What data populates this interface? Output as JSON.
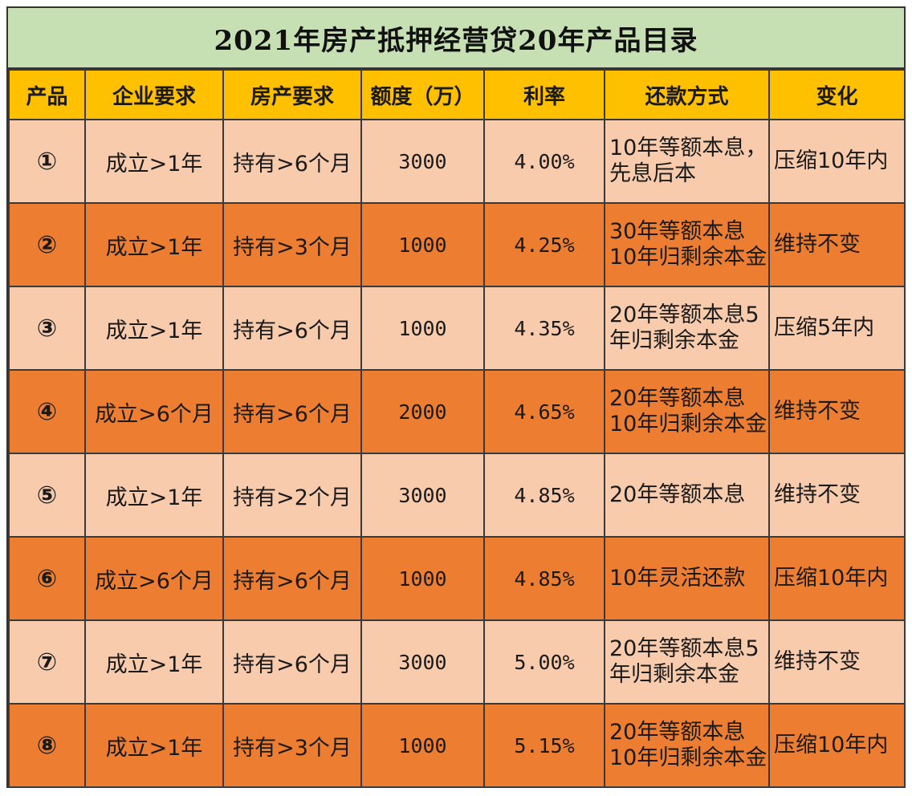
{
  "title": "2021年房产抵押经营贷20年产品目录",
  "headers": [
    "产品",
    "企业要求",
    "房产要求",
    "额度（万）",
    "利率",
    "还款方式",
    "变化"
  ],
  "rows": [
    {
      "id": "①",
      "company": "成立>1年",
      "property": "持有>6个月",
      "amount": "3000",
      "rate": "4.00%",
      "repayment": "10年等额本息，先息后本",
      "change": "压缩10年内"
    },
    {
      "id": "②",
      "company": "成立>1年",
      "property": "持有>3个月",
      "amount": "1000",
      "rate": "4.25%",
      "repayment": "30年等额本息10年归剩余本金",
      "change": "维持不变"
    },
    {
      "id": "③",
      "company": "成立>1年",
      "property": "持有>6个月",
      "amount": "1000",
      "rate": "4.35%",
      "repayment": "20年等额本息5年归剩余本金",
      "change": "压缩5年内"
    },
    {
      "id": "④",
      "company": "成立>6个月",
      "property": "持有>6个月",
      "amount": "2000",
      "rate": "4.65%",
      "repayment": "20年等额本息10年归剩余本金",
      "change": "维持不变"
    },
    {
      "id": "⑤",
      "company": "成立>1年",
      "property": "持有>2个月",
      "amount": "3000",
      "rate": "4.85%",
      "repayment": "20年等额本息",
      "change": "维持不变"
    },
    {
      "id": "⑥",
      "company": "成立>6个月",
      "property": "持有>6个月",
      "amount": "1000",
      "rate": "4.85%",
      "repayment": "10年灵活还款",
      "change": "压缩10年内"
    },
    {
      "id": "⑦",
      "company": "成立>1年",
      "property": "持有>6个月",
      "amount": "3000",
      "rate": "5.00%",
      "repayment": "20年等额本息5年归剩余本金",
      "change": "维持不变"
    },
    {
      "id": "⑧",
      "company": "成立>1年",
      "property": "持有>3个月",
      "amount": "1000",
      "rate": "5.15%",
      "repayment": "20年等额本息10年归剩余本金",
      "change": "压缩10年内"
    }
  ],
  "colors": {
    "title_bg": "#c6e0b4",
    "header_bg": "#ffc000",
    "row_light": "#f8cbad",
    "row_dark": "#ed7d31"
  }
}
